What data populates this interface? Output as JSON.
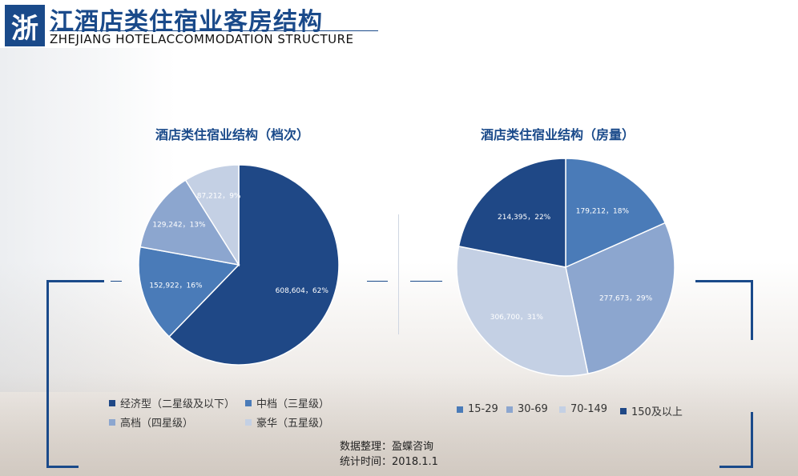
{
  "header": {
    "badge": "浙",
    "title": "江酒店类住宿业客房结构",
    "subtitle": "ZHEJIANG HOTELACCOMMODATION STRUCTURE"
  },
  "colors": {
    "dark": "#1f4886",
    "mid": "#4a7bb8",
    "light": "#8ca6cf",
    "pale": "#c4d0e4"
  },
  "chart_data": [
    {
      "type": "pie",
      "title": "酒店类住宿业结构（档次）",
      "slices": [
        {
          "name": "经济型（二星级及以下）",
          "value": 608604,
          "percent": 62,
          "label": "608,604，62%",
          "color": "#1f4886"
        },
        {
          "name": "中档（三星级）",
          "value": 152922,
          "percent": 16,
          "label": "152,922，16%",
          "color": "#4a7bb8"
        },
        {
          "name": "高档（四星级）",
          "value": 129242,
          "percent": 13,
          "label": "129,242，13%",
          "color": "#8ca6cf"
        },
        {
          "name": "豪华（五星级）",
          "value": 87212,
          "percent": 9,
          "label": "87,212，9%",
          "color": "#c4d0e4"
        }
      ]
    },
    {
      "type": "pie",
      "title": "酒店类住宿业结构（房量）",
      "slices": [
        {
          "name": "15-29",
          "value": 179212,
          "percent": 18,
          "label": "179,212，18%",
          "color": "#4a7bb8"
        },
        {
          "name": "30-69",
          "value": 277673,
          "percent": 29,
          "label": "277,673，29%",
          "color": "#8ca6cf"
        },
        {
          "name": "70-149",
          "value": 306700,
          "percent": 31,
          "label": "306,700，31%",
          "color": "#c4d0e4"
        },
        {
          "name": "150及以上",
          "value": 214395,
          "percent": 22,
          "label": "214,395，22%",
          "color": "#1f4886"
        }
      ]
    }
  ],
  "source": {
    "line1": "数据整理：盈蝶咨询",
    "line2": "统计时间：2018.1.1"
  }
}
